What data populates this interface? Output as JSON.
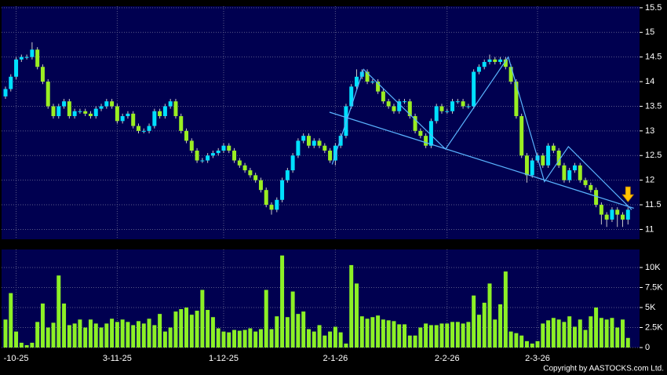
{
  "chart_data": {
    "type": "candlestick",
    "copyright": "Copyright by AASTOCKS.com Ltd.",
    "up_color": "#00e0ff",
    "down_color": "#9aee22",
    "volume_color": "#8cf026",
    "trendline_color": "#5ab4ff",
    "grid": true,
    "xlim": [
      -1.03,
      119.17
    ],
    "xticks": [
      {
        "value": 2,
        "label": "-10-25"
      },
      {
        "value": 21,
        "label": "3-11-25"
      },
      {
        "value": 41,
        "label": "1-12-25"
      },
      {
        "value": 62,
        "label": "2-1-26"
      },
      {
        "value": 83,
        "label": "2-2-26"
      },
      {
        "value": 100,
        "label": "2-3-26"
      }
    ],
    "ylim": [
      10.8,
      15.53
    ],
    "yticks": [
      11,
      11.5,
      12,
      12.5,
      13,
      13.5,
      14,
      14.5,
      15,
      15.5
    ],
    "y2lim": [
      0,
      12250
    ],
    "y2ticks": [
      0,
      {
        "value": 2500,
        "label": "2.5K"
      },
      {
        "value": 5000,
        "label": "5K"
      },
      {
        "value": 7500,
        "label": "7.5K"
      },
      {
        "value": 10000,
        "label": "10K"
      }
    ],
    "open": [
      13.7,
      13.85,
      14.1,
      14.45,
      14.5,
      14.5,
      14.65,
      14.3,
      14.0,
      13.5,
      13.3,
      13.5,
      13.6,
      13.3,
      13.4,
      13.4,
      13.35,
      13.3,
      13.45,
      13.5,
      13.6,
      13.5,
      13.2,
      13.3,
      13.35,
      13.1,
      13.0,
      13.0,
      13.1,
      13.4,
      13.3,
      13.5,
      13.6,
      13.3,
      13.0,
      12.8,
      12.6,
      12.4,
      12.4,
      12.5,
      12.55,
      12.6,
      12.7,
      12.6,
      12.4,
      12.3,
      12.2,
      12.1,
      12.0,
      11.8,
      11.5,
      11.4,
      11.6,
      12.0,
      12.2,
      12.5,
      12.8,
      12.9,
      12.7,
      12.8,
      12.7,
      12.6,
      12.4,
      12.7,
      12.9,
      13.5,
      13.9,
      14.1,
      14.2,
      14.0,
      14.0,
      13.8,
      13.6,
      13.5,
      13.4,
      13.6,
      13.6,
      13.3,
      13.0,
      12.9,
      12.7,
      13.2,
      13.5,
      13.4,
      13.4,
      13.6,
      13.6,
      13.5,
      13.5,
      14.2,
      14.3,
      14.4,
      14.45,
      14.4,
      14.45,
      14.3,
      14.0,
      13.3,
      12.5,
      12.1,
      12.4,
      12.5,
      12.3,
      12.7,
      12.6,
      12.3,
      12.0,
      12.2,
      12.3,
      12.0,
      11.9,
      11.8,
      11.5,
      11.3,
      11.2,
      11.4,
      11.3,
      11.2
    ],
    "high": [
      13.9,
      14.15,
      14.5,
      14.55,
      14.55,
      14.8,
      14.7,
      14.35,
      14.05,
      13.55,
      13.55,
      13.65,
      13.65,
      13.45,
      13.45,
      13.45,
      13.4,
      13.5,
      13.55,
      13.65,
      13.65,
      13.55,
      13.35,
      13.4,
      13.4,
      13.15,
      13.05,
      13.15,
      13.45,
      13.45,
      13.55,
      13.65,
      13.65,
      13.35,
      13.05,
      12.85,
      12.65,
      12.45,
      12.55,
      12.6,
      12.65,
      12.75,
      12.75,
      12.65,
      12.45,
      12.35,
      12.25,
      12.15,
      12.05,
      11.85,
      11.55,
      11.65,
      12.05,
      12.25,
      12.55,
      12.85,
      12.95,
      12.95,
      12.85,
      12.85,
      12.75,
      12.65,
      12.75,
      12.95,
      13.55,
      13.95,
      14.25,
      14.25,
      14.25,
      14.05,
      14.05,
      13.85,
      13.65,
      13.55,
      13.65,
      13.65,
      13.65,
      13.35,
      13.05,
      12.95,
      13.25,
      13.55,
      13.55,
      13.45,
      13.65,
      13.65,
      13.65,
      13.55,
      14.25,
      14.35,
      14.45,
      14.55,
      14.5,
      14.5,
      14.5,
      14.35,
      14.05,
      13.35,
      12.55,
      12.45,
      12.55,
      12.55,
      12.75,
      12.75,
      12.65,
      12.35,
      12.25,
      12.35,
      12.35,
      12.05,
      11.95,
      11.85,
      11.55,
      11.35,
      11.45,
      11.45,
      11.35,
      11.45
    ],
    "low": [
      13.65,
      13.8,
      14.05,
      14.4,
      14.45,
      14.45,
      14.25,
      13.95,
      13.45,
      13.25,
      13.25,
      13.45,
      13.25,
      13.25,
      13.35,
      13.3,
      13.25,
      13.25,
      13.4,
      13.45,
      13.45,
      13.15,
      13.15,
      13.25,
      13.05,
      12.95,
      12.95,
      12.95,
      13.05,
      13.25,
      13.25,
      13.45,
      13.25,
      12.95,
      12.75,
      12.55,
      12.35,
      12.35,
      12.35,
      12.45,
      12.5,
      12.55,
      12.55,
      12.35,
      12.25,
      12.15,
      12.05,
      11.95,
      11.75,
      11.45,
      11.3,
      11.35,
      11.55,
      11.95,
      12.15,
      12.45,
      12.75,
      12.65,
      12.65,
      12.65,
      12.55,
      12.35,
      12.3,
      12.65,
      12.85,
      13.45,
      13.85,
      14.05,
      13.95,
      13.95,
      13.75,
      13.55,
      13.45,
      13.35,
      13.35,
      13.55,
      13.25,
      12.95,
      12.85,
      12.65,
      12.65,
      13.15,
      13.35,
      13.35,
      13.35,
      13.55,
      13.45,
      13.45,
      13.45,
      14.15,
      14.25,
      14.35,
      14.35,
      14.35,
      14.25,
      13.95,
      13.25,
      12.45,
      11.95,
      12.05,
      12.35,
      12.25,
      12.25,
      12.55,
      12.25,
      11.95,
      11.95,
      12.15,
      11.95,
      11.85,
      11.75,
      11.45,
      11.1,
      11.05,
      11.15,
      11.05,
      11.05,
      11.1
    ],
    "close": [
      13.85,
      14.1,
      14.45,
      14.5,
      14.5,
      14.65,
      14.3,
      14.0,
      13.5,
      13.3,
      13.5,
      13.6,
      13.3,
      13.4,
      13.4,
      13.35,
      13.3,
      13.45,
      13.5,
      13.6,
      13.5,
      13.2,
      13.3,
      13.35,
      13.1,
      13.0,
      13.0,
      13.1,
      13.4,
      13.3,
      13.5,
      13.6,
      13.3,
      13.0,
      12.8,
      12.6,
      12.4,
      12.4,
      12.5,
      12.55,
      12.6,
      12.7,
      12.6,
      12.4,
      12.3,
      12.2,
      12.1,
      12.0,
      11.8,
      11.5,
      11.4,
      11.6,
      12.0,
      12.2,
      12.5,
      12.8,
      12.9,
      12.7,
      12.8,
      12.7,
      12.6,
      12.4,
      12.7,
      12.9,
      13.5,
      13.9,
      14.1,
      14.2,
      14.0,
      14.0,
      13.8,
      13.6,
      13.5,
      13.4,
      13.6,
      13.6,
      13.3,
      13.0,
      12.9,
      12.7,
      13.2,
      13.5,
      13.4,
      13.4,
      13.6,
      13.6,
      13.5,
      13.5,
      14.2,
      14.3,
      14.4,
      14.45,
      14.4,
      14.45,
      14.3,
      14.0,
      13.3,
      12.5,
      12.1,
      12.4,
      12.5,
      12.3,
      12.7,
      12.6,
      12.3,
      12.0,
      12.2,
      12.3,
      12.0,
      11.9,
      11.8,
      11.5,
      11.3,
      11.2,
      11.4,
      11.3,
      11.2,
      11.4
    ],
    "volume": [
      3500,
      6800,
      2000,
      600,
      300,
      600,
      3200,
      5500,
      2500,
      3100,
      9000,
      5500,
      2800,
      3000,
      3500,
      2500,
      3500,
      3000,
      2500,
      3000,
      3600,
      3200,
      3500,
      3200,
      2800,
      3300,
      3000,
      3600,
      2800,
      4200,
      2000,
      2500,
      4500,
      4800,
      5000,
      4100,
      4600,
      7200,
      4700,
      3800,
      2400,
      2000,
      1900,
      2200,
      2100,
      2200,
      2400,
      2000,
      2300,
      7200,
      2300,
      3900,
      11500,
      3800,
      7000,
      4200,
      4500,
      2300,
      2000,
      2800,
      1500,
      2000,
      2600,
      1900,
      500,
      10300,
      8000,
      3900,
      3600,
      3800,
      4000,
      3500,
      3400,
      3300,
      2900,
      2900,
      1500,
      1500,
      2500,
      3000,
      2800,
      2800,
      3000,
      3000,
      3200,
      3200,
      3000,
      3200,
      6500,
      4100,
      5600,
      8000,
      3500,
      5400,
      9500,
      2000,
      1800,
      1500,
      800,
      500,
      800,
      3000,
      3400,
      3700,
      3500,
      3200,
      3900,
      2600,
      3500,
      2200,
      3900,
      5000,
      3700,
      3500,
      3700,
      2500,
      3500,
      1200
    ],
    "trendlines": [
      {
        "x": [
          60.9,
          118.1
        ],
        "y": [
          13.38,
          11.43
        ]
      },
      {
        "x": [
          61.4,
          67.3,
          82.7,
          94.5,
          101.3,
          105.8,
          117.7
        ],
        "y": [
          12.32,
          14.25,
          12.63,
          14.5,
          11.97,
          12.68,
          11.4
        ]
      }
    ]
  }
}
